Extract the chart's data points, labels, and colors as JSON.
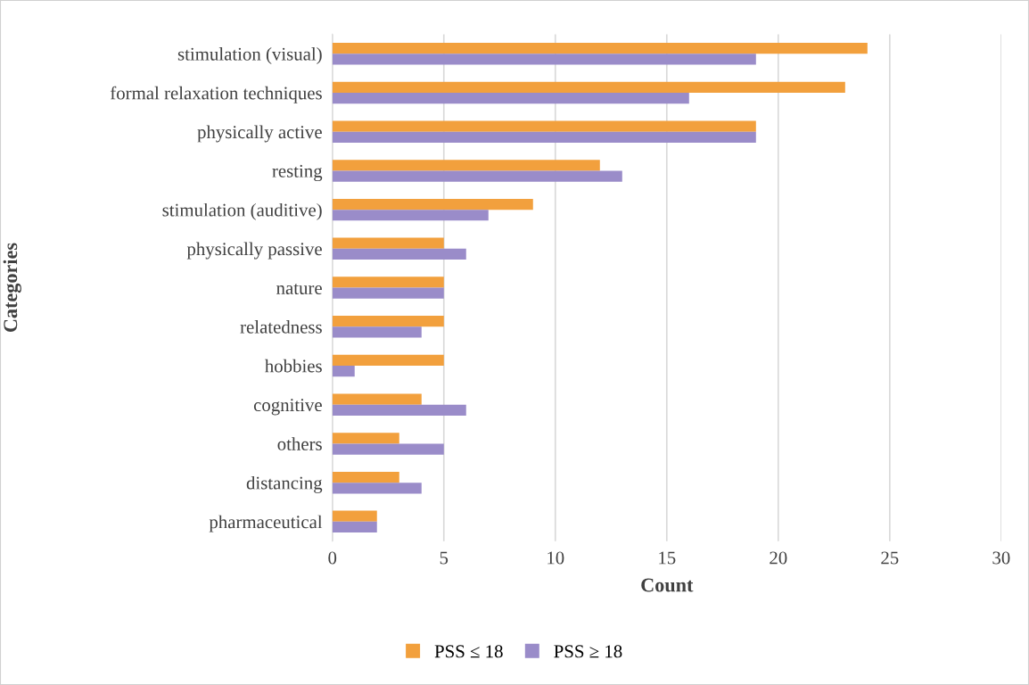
{
  "chart_data": {
    "type": "bar",
    "orientation": "horizontal",
    "xlabel": "Count",
    "ylabel": "Categories",
    "categories": [
      "stimulation (visual)",
      "formal relaxation techniques",
      "physically active",
      "resting",
      "stimulation (auditive)",
      "physically passive",
      "nature",
      "relatedness",
      "hobbies",
      "cognitive",
      "others",
      "distancing",
      "pharmaceutical"
    ],
    "series": [
      {
        "name": "PSS ≤ 18",
        "color": "#f2a03d",
        "values": [
          24,
          23,
          19,
          12,
          9,
          5,
          5,
          5,
          5,
          4,
          3,
          3,
          2
        ]
      },
      {
        "name": "PSS ≥ 18",
        "color": "#9a8cc9",
        "values": [
          19,
          16,
          19,
          13,
          7,
          6,
          5,
          4,
          1,
          6,
          5,
          4,
          2
        ]
      }
    ],
    "xlim": [
      0,
      30
    ],
    "xticks": [
      0,
      5,
      10,
      15,
      20,
      25,
      30
    ],
    "grid": "x",
    "legend": "bottom"
  }
}
